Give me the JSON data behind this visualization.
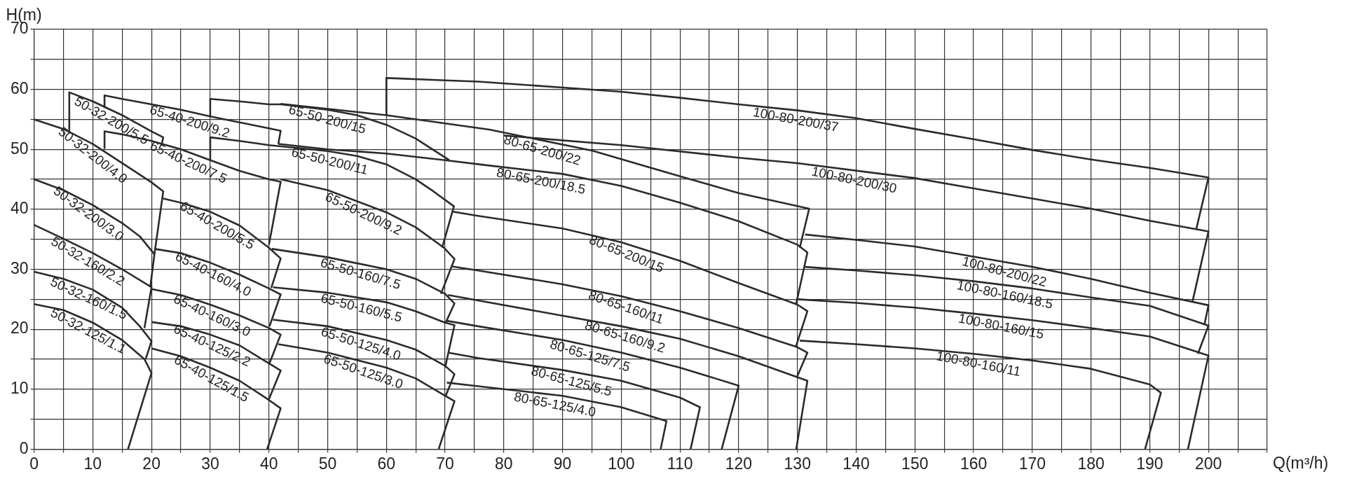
{
  "chart_data": {
    "type": "line",
    "xlabel": "Q(m³/h)",
    "ylabel": "H(m)",
    "xlim": [
      0,
      210
    ],
    "ylim": [
      0,
      70
    ],
    "xticks": [
      0,
      {
        "value": 5,
        "label": null
      },
      10,
      {
        "value": 15,
        "label": null
      },
      20,
      {
        "value": 25,
        "label": null
      },
      30,
      {
        "value": 35,
        "label": null
      },
      40,
      {
        "value": 45,
        "label": null
      },
      50,
      {
        "value": 55,
        "label": null
      },
      60,
      {
        "value": 65,
        "label": null
      },
      70,
      {
        "value": 75,
        "label": null
      },
      80,
      {
        "value": 85,
        "label": null
      },
      90,
      {
        "value": 95,
        "label": null
      },
      100,
      {
        "value": 105,
        "label": null
      },
      110,
      {
        "value": 115,
        "label": null
      },
      120,
      {
        "value": 125,
        "label": null
      },
      130,
      {
        "value": 135,
        "label": null
      },
      140,
      {
        "value": 145,
        "label": null
      },
      150,
      {
        "value": 155,
        "label": null
      },
      160,
      {
        "value": 165,
        "label": null
      },
      170,
      {
        "value": 175,
        "label": null
      },
      180,
      {
        "value": 185,
        "label": null
      },
      190,
      {
        "value": 195,
        "label": null
      },
      200,
      {
        "value": 205,
        "label": null
      },
      {
        "value": 210,
        "label": null
      }
    ],
    "yticks": [
      0,
      {
        "value": 5,
        "label": null
      },
      10,
      {
        "value": 15,
        "label": null
      },
      20,
      {
        "value": 25,
        "label": null
      },
      30,
      {
        "value": 35,
        "label": null
      },
      40,
      {
        "value": 45,
        "label": null
      },
      50,
      {
        "value": 55,
        "label": null
      },
      60,
      {
        "value": 65,
        "label": null
      },
      70
    ],
    "grid": true,
    "legend": false,
    "series": [
      {
        "name": "50-32-200/5.5",
        "color": "#2b2b2b",
        "x": [
          6,
          6,
          10,
          15,
          20,
          22,
          21.7
        ],
        "values": [
          52.9,
          59.5,
          58,
          55.7,
          53,
          52,
          50.7
        ]
      },
      {
        "name": "50-32-200/4.0",
        "color": "#2b2b2b",
        "x": [
          0,
          5,
          10,
          15,
          20,
          22,
          20.5
        ],
        "values": [
          55,
          53.4,
          50.9,
          47.7,
          44.5,
          43,
          32.5
        ]
      },
      {
        "name": "50-32-200/3.0",
        "color": "#2b2b2b",
        "x": [
          0,
          5,
          10,
          15,
          18,
          20.5,
          19.8
        ],
        "values": [
          45,
          43.2,
          40.7,
          37.7,
          35.5,
          32.5,
          27.1
        ]
      },
      {
        "name": "50-32-160/2.2",
        "color": "#2b2b2b",
        "x": [
          0,
          5,
          10,
          15,
          20,
          18.8
        ],
        "values": [
          37.4,
          35.1,
          32.7,
          30,
          27,
          20.2
        ]
      },
      {
        "name": "50-32-160/1.5",
        "color": "#2b2b2b",
        "x": [
          0,
          5,
          10,
          15,
          18,
          20,
          19
        ],
        "values": [
          29.6,
          28.4,
          26.6,
          23.6,
          20.5,
          18,
          15
        ]
      },
      {
        "name": "50-32-125/1.1",
        "color": "#2b2b2b",
        "x": [
          0,
          5,
          10,
          15,
          18.8,
          20,
          16
        ],
        "values": [
          24.2,
          23.2,
          21.1,
          18.2,
          15,
          12.7,
          0
        ]
      },
      {
        "name": "65-40-200/9.2",
        "color": "#2b2b2b",
        "x": [
          12,
          12,
          15,
          20,
          25,
          30,
          35,
          40,
          42,
          41.6
        ],
        "values": [
          56.9,
          59,
          58.4,
          57.5,
          56.6,
          55.5,
          54.5,
          53.5,
          53.1,
          50.9
        ]
      },
      {
        "name": "65-40-200/7.5",
        "color": "#2b2b2b",
        "x": [
          12,
          12,
          15,
          20,
          25,
          30,
          35,
          40,
          42,
          40
        ],
        "values": [
          50.1,
          53,
          52.5,
          51.4,
          50,
          48.2,
          46.4,
          45,
          44.6,
          34.1
        ]
      },
      {
        "name": "65-40-200/5.5",
        "color": "#2b2b2b",
        "x": [
          22,
          25,
          30,
          35,
          40,
          42,
          40.4
        ],
        "values": [
          41.8,
          41.1,
          39.6,
          37.3,
          33.6,
          31.8,
          26.9
        ]
      },
      {
        "name": "65-40-160/4.0",
        "color": "#2b2b2b",
        "x": [
          20.5,
          25,
          30,
          35,
          40,
          42,
          40.1
        ],
        "values": [
          33.4,
          32.7,
          31.1,
          29.1,
          26.8,
          25.8,
          20.5
        ]
      },
      {
        "name": "65-40-160/3.0",
        "color": "#2b2b2b",
        "x": [
          20,
          25,
          30,
          35,
          40,
          42,
          40
        ],
        "values": [
          26.7,
          25.7,
          24.1,
          22.3,
          20.2,
          19.1,
          14.1
        ]
      },
      {
        "name": "65-40-125/2.2",
        "color": "#2b2b2b",
        "x": [
          20,
          25,
          30,
          35,
          40,
          42,
          39.9
        ],
        "values": [
          21.2,
          20.5,
          19.1,
          17.3,
          14.3,
          13.1,
          8.1
        ]
      },
      {
        "name": "65-40-125/1.5",
        "color": "#2b2b2b",
        "x": [
          20,
          25,
          30,
          35,
          40,
          42,
          39.7
        ],
        "values": [
          16.8,
          15.5,
          13.6,
          11.4,
          8.2,
          6.8,
          0
        ]
      },
      {
        "name": "65-50-200/15",
        "color": "#2b2b2b",
        "x": [
          30,
          30,
          35,
          40,
          42,
          50,
          55,
          60,
          65,
          70.7
        ],
        "values": [
          55.5,
          58.4,
          58,
          57.5,
          57.5,
          56.6,
          55.7,
          54.1,
          51.8,
          48.2
        ]
      },
      {
        "name": "65-50-200/11",
        "color": "#2b2b2b",
        "x": [
          30,
          30,
          35,
          40,
          50,
          55,
          60,
          65,
          68,
          71.5,
          69.5
        ],
        "values": [
          48.2,
          52,
          51.4,
          50.7,
          49.7,
          48.9,
          47.5,
          45,
          43,
          40.5,
          33.6
        ]
      },
      {
        "name": "65-50-200/9.2",
        "color": "#2b2b2b",
        "x": [
          42,
          50,
          60,
          65,
          69.8,
          71.6,
          69.3
        ],
        "values": [
          45,
          43.2,
          39.5,
          37,
          33.6,
          31.7,
          25.9
        ]
      },
      {
        "name": "65-50-160/7.5",
        "color": "#2b2b2b",
        "x": [
          40.5,
          50,
          60,
          65,
          70,
          71.6,
          70.1
        ],
        "values": [
          33.4,
          32,
          30,
          28.4,
          25.9,
          24.3,
          21.1
        ]
      },
      {
        "name": "65-50-160/5.5",
        "color": "#2b2b2b",
        "x": [
          40.7,
          50,
          60,
          65,
          70,
          71.6,
          70
        ],
        "values": [
          27,
          26.1,
          24.5,
          23,
          21.1,
          20.7,
          13.6
        ]
      },
      {
        "name": "65-50-125/4.0",
        "color": "#2b2b2b",
        "x": [
          40.7,
          50,
          60,
          65,
          70,
          71.6,
          70.1
        ],
        "values": [
          21.6,
          20.5,
          18.2,
          16.6,
          13.9,
          12.5,
          8.9
        ]
      },
      {
        "name": "65-50-125/3.0",
        "color": "#2b2b2b",
        "x": [
          41.6,
          50,
          60,
          65,
          70,
          71.6,
          68.9
        ],
        "values": [
          17.5,
          16.1,
          13.6,
          11.8,
          8.9,
          8,
          0
        ]
      },
      {
        "name": "80-65-200/22",
        "color": "#2b2b2b",
        "x": [
          42,
          60,
          77.5,
          95,
          110,
          120,
          132,
          130.4
        ],
        "values": [
          57.6,
          55.7,
          53.3,
          49.8,
          45.5,
          42.7,
          40.1,
          33.6
        ]
      },
      {
        "name": "80-65-200/18.5",
        "color": "#2b2b2b",
        "x": [
          41.6,
          50,
          60,
          70,
          77.5,
          90,
          100,
          110,
          120,
          130,
          131.7,
          129.8
        ],
        "values": [
          50.9,
          50,
          49.3,
          48.2,
          47.3,
          45.9,
          43.9,
          41.1,
          38,
          34.1,
          32.8,
          24.3
        ]
      },
      {
        "name": "80-65-200/15",
        "color": "#2b2b2b",
        "x": [
          71.3,
          75.6,
          90,
          100,
          110,
          120,
          130,
          131.7,
          129.7
        ],
        "values": [
          39.6,
          38.9,
          36.8,
          34.5,
          31.4,
          27.7,
          24.1,
          23,
          17
        ]
      },
      {
        "name": "80-65-160/11",
        "color": "#2b2b2b",
        "x": [
          71,
          75.6,
          90,
          100,
          110,
          120,
          130,
          131.7,
          129.9
        ],
        "values": [
          30.5,
          29.8,
          27.5,
          25.5,
          23,
          20.2,
          17,
          16.1,
          12
        ]
      },
      {
        "name": "80-65-160/9.2",
        "color": "#2b2b2b",
        "x": [
          70.5,
          75.6,
          100,
          110,
          120,
          131.7,
          129.8
        ],
        "values": [
          25.7,
          24.8,
          20.5,
          18.4,
          15.5,
          11.4,
          0
        ]
      },
      {
        "name": "80-65-125/7.5",
        "color": "#2b2b2b",
        "x": [
          70.3,
          75.6,
          90,
          100,
          110,
          120,
          117.1
        ],
        "values": [
          21.4,
          20.5,
          18.2,
          16.1,
          13.6,
          10.6,
          0
        ]
      },
      {
        "name": "80-65-125/5.5",
        "color": "#2b2b2b",
        "x": [
          70.5,
          75.6,
          90,
          100,
          110,
          113.4,
          111.8
        ],
        "values": [
          16.1,
          15.2,
          13.2,
          11.4,
          8.6,
          7,
          0
        ]
      },
      {
        "name": "80-65-125/4.0",
        "color": "#2b2b2b",
        "x": [
          70.3,
          75.6,
          90,
          100,
          107.7,
          106.7
        ],
        "values": [
          11.1,
          10.5,
          8.9,
          7,
          4.7,
          0
        ]
      },
      {
        "name": "100-80-200/37",
        "color": "#2b2b2b",
        "x": [
          60,
          60,
          70,
          75.6,
          90,
          100,
          110,
          120,
          130,
          140,
          150,
          160,
          170,
          180,
          190,
          200,
          197.9
        ],
        "values": [
          55.7,
          61.9,
          61.5,
          61.3,
          60.3,
          59.6,
          58.6,
          57.5,
          56.5,
          55.2,
          53.4,
          51.7,
          49.9,
          48.3,
          46.9,
          45.3,
          36.6
        ]
      },
      {
        "name": "100-80-200/30",
        "color": "#2b2b2b",
        "x": [
          80,
          100,
          120,
          130,
          150,
          160,
          170,
          180,
          190,
          200,
          197.3
        ],
        "values": [
          52.3,
          50.7,
          48.6,
          47.7,
          45.2,
          43.5,
          41.8,
          40.1,
          38.1,
          36.3,
          24.7
        ]
      },
      {
        "name": "100-80-200/22",
        "color": "#2b2b2b",
        "x": [
          131.3,
          140,
          150,
          160,
          170,
          180,
          190,
          200,
          199.3
        ],
        "values": [
          35.8,
          34.9,
          33.8,
          32.1,
          30.4,
          28.4,
          26.1,
          24,
          20.7
        ]
      },
      {
        "name": "100-80-160/18.5",
        "color": "#2b2b2b",
        "x": [
          131.3,
          140,
          150,
          160,
          170,
          180,
          190,
          200,
          198.2
        ],
        "values": [
          30.4,
          29.8,
          29,
          28,
          26.8,
          25.3,
          23.9,
          20.6,
          15.9
        ]
      },
      {
        "name": "100-80-160/15",
        "color": "#2b2b2b",
        "x": [
          130,
          140,
          150,
          160,
          170,
          180,
          190,
          200,
          196.5
        ],
        "values": [
          25,
          24.4,
          23.6,
          22.6,
          21.5,
          20.2,
          18.8,
          15.6,
          0
        ]
      },
      {
        "name": "100-80-160/11",
        "color": "#2b2b2b",
        "x": [
          130.4,
          140,
          150,
          160,
          170,
          180,
          190,
          191.9,
          189.2
        ],
        "values": [
          18.1,
          17.5,
          16.8,
          15.9,
          14.8,
          13.4,
          10.8,
          9.4,
          0
        ]
      }
    ]
  }
}
